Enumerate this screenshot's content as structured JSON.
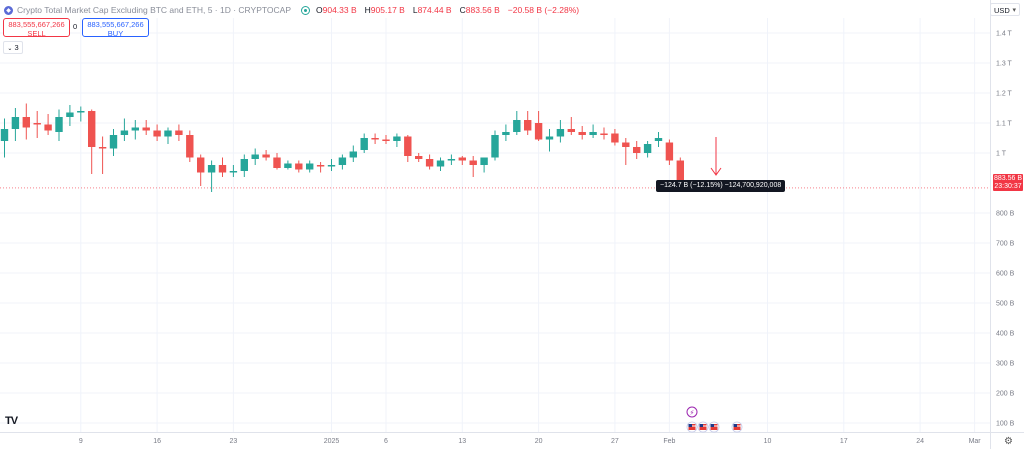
{
  "header": {
    "title": "Crypto Total Market Cap Excluding BTC and ETH, 5 · 1D · CRYPTOCAP",
    "ohlc": [
      {
        "k": "O",
        "v": "904.33 B"
      },
      {
        "k": "H",
        "v": "905.17 B"
      },
      {
        "k": "L",
        "v": "874.44 B"
      },
      {
        "k": "C",
        "v": "883.56 B"
      },
      {
        "k": "",
        "v": "−20.58 B (−2.28%)"
      }
    ]
  },
  "trade": {
    "sell_price": "883,555,667,266",
    "sell_label": "SELL",
    "spread": "0",
    "buy_price": "883,555,667,266",
    "buy_label": "BUY"
  },
  "indicators_count": "3",
  "currency": "USD",
  "price_tag": {
    "price": "883.56 B",
    "countdown": "23:30:37"
  },
  "measure_label": "−124.7 B (−12.15%) −124,700,920,008",
  "logo": "TV",
  "colors": {
    "up": "#26a69a",
    "down": "#ef5350",
    "grid": "#f0f3fa",
    "axis_text": "#787b86"
  },
  "chart_data": {
    "type": "candlestick",
    "y_unit": "B USD",
    "ylim": [
      70,
      1450
    ],
    "y_ticks": [
      {
        "v": 100,
        "label": "100 B"
      },
      {
        "v": 200,
        "label": "200 B"
      },
      {
        "v": 300,
        "label": "300 B"
      },
      {
        "v": 400,
        "label": "400 B"
      },
      {
        "v": 500,
        "label": "500 B"
      },
      {
        "v": 600,
        "label": "600 B"
      },
      {
        "v": 700,
        "label": "700 B"
      },
      {
        "v": 800,
        "label": "800 B"
      },
      {
        "v": 1000,
        "label": "1 T"
      },
      {
        "v": 1100,
        "label": "1.1 T"
      },
      {
        "v": 1200,
        "label": "1.2 T"
      },
      {
        "v": 1300,
        "label": "1.3 T"
      },
      {
        "v": 1400,
        "label": "1.4 T"
      }
    ],
    "x_ticks": [
      {
        "label": "9",
        "i": 7
      },
      {
        "label": "16",
        "i": 14
      },
      {
        "label": "23",
        "i": 21
      },
      {
        "label": "2025",
        "i": 30
      },
      {
        "label": "6",
        "i": 35
      },
      {
        "label": "13",
        "i": 42
      },
      {
        "label": "20",
        "i": 49
      },
      {
        "label": "27",
        "i": 56
      },
      {
        "label": "Feb",
        "i": 61
      },
      {
        "label": "10",
        "i": 70
      },
      {
        "label": "17",
        "i": 77
      },
      {
        "label": "24",
        "i": 84
      },
      {
        "label": "Mar",
        "i": 89
      }
    ],
    "current_price": 883.56,
    "candles": [
      {
        "o": 1040,
        "h": 1115,
        "l": 985,
        "c": 1080
      },
      {
        "o": 1080,
        "h": 1150,
        "l": 1040,
        "c": 1120
      },
      {
        "o": 1120,
        "h": 1165,
        "l": 1045,
        "c": 1085
      },
      {
        "o": 1100,
        "h": 1140,
        "l": 1050,
        "c": 1095
      },
      {
        "o": 1095,
        "h": 1130,
        "l": 1060,
        "c": 1075
      },
      {
        "o": 1070,
        "h": 1145,
        "l": 1040,
        "c": 1120
      },
      {
        "o": 1120,
        "h": 1160,
        "l": 1090,
        "c": 1135
      },
      {
        "o": 1135,
        "h": 1155,
        "l": 1105,
        "c": 1140
      },
      {
        "o": 1140,
        "h": 1145,
        "l": 930,
        "c": 1020
      },
      {
        "o": 1020,
        "h": 1055,
        "l": 930,
        "c": 1015
      },
      {
        "o": 1015,
        "h": 1080,
        "l": 990,
        "c": 1060
      },
      {
        "o": 1060,
        "h": 1115,
        "l": 1040,
        "c": 1075
      },
      {
        "o": 1075,
        "h": 1110,
        "l": 1045,
        "c": 1085
      },
      {
        "o": 1085,
        "h": 1110,
        "l": 1060,
        "c": 1075
      },
      {
        "o": 1075,
        "h": 1095,
        "l": 1040,
        "c": 1055
      },
      {
        "o": 1055,
        "h": 1085,
        "l": 1030,
        "c": 1075
      },
      {
        "o": 1075,
        "h": 1095,
        "l": 1040,
        "c": 1060
      },
      {
        "o": 1060,
        "h": 1075,
        "l": 970,
        "c": 985
      },
      {
        "o": 985,
        "h": 995,
        "l": 890,
        "c": 935
      },
      {
        "o": 935,
        "h": 975,
        "l": 870,
        "c": 960
      },
      {
        "o": 960,
        "h": 985,
        "l": 920,
        "c": 935
      },
      {
        "o": 935,
        "h": 960,
        "l": 920,
        "c": 940
      },
      {
        "o": 940,
        "h": 995,
        "l": 920,
        "c": 980
      },
      {
        "o": 980,
        "h": 1015,
        "l": 960,
        "c": 995
      },
      {
        "o": 995,
        "h": 1010,
        "l": 975,
        "c": 985
      },
      {
        "o": 985,
        "h": 1000,
        "l": 945,
        "c": 950
      },
      {
        "o": 950,
        "h": 975,
        "l": 945,
        "c": 965
      },
      {
        "o": 965,
        "h": 975,
        "l": 935,
        "c": 945
      },
      {
        "o": 945,
        "h": 975,
        "l": 935,
        "c": 965
      },
      {
        "o": 960,
        "h": 970,
        "l": 935,
        "c": 955
      },
      {
        "o": 955,
        "h": 980,
        "l": 940,
        "c": 960
      },
      {
        "o": 960,
        "h": 995,
        "l": 945,
        "c": 985
      },
      {
        "o": 985,
        "h": 1025,
        "l": 970,
        "c": 1005
      },
      {
        "o": 1010,
        "h": 1065,
        "l": 1000,
        "c": 1050
      },
      {
        "o": 1050,
        "h": 1065,
        "l": 1030,
        "c": 1045
      },
      {
        "o": 1045,
        "h": 1060,
        "l": 1030,
        "c": 1040
      },
      {
        "o": 1040,
        "h": 1065,
        "l": 1020,
        "c": 1055
      },
      {
        "o": 1055,
        "h": 1060,
        "l": 970,
        "c": 990
      },
      {
        "o": 990,
        "h": 1000,
        "l": 970,
        "c": 980
      },
      {
        "o": 980,
        "h": 995,
        "l": 945,
        "c": 955
      },
      {
        "o": 955,
        "h": 985,
        "l": 940,
        "c": 975
      },
      {
        "o": 975,
        "h": 995,
        "l": 960,
        "c": 980
      },
      {
        "o": 985,
        "h": 990,
        "l": 960,
        "c": 975
      },
      {
        "o": 975,
        "h": 990,
        "l": 920,
        "c": 960
      },
      {
        "o": 960,
        "h": 985,
        "l": 935,
        "c": 985
      },
      {
        "o": 985,
        "h": 1075,
        "l": 975,
        "c": 1060
      },
      {
        "o": 1060,
        "h": 1095,
        "l": 1040,
        "c": 1070
      },
      {
        "o": 1070,
        "h": 1140,
        "l": 1060,
        "c": 1110
      },
      {
        "o": 1110,
        "h": 1140,
        "l": 1060,
        "c": 1075
      },
      {
        "o": 1100,
        "h": 1140,
        "l": 1040,
        "c": 1045
      },
      {
        "o": 1045,
        "h": 1080,
        "l": 1005,
        "c": 1055
      },
      {
        "o": 1055,
        "h": 1110,
        "l": 1035,
        "c": 1080
      },
      {
        "o": 1080,
        "h": 1120,
        "l": 1060,
        "c": 1070
      },
      {
        "o": 1070,
        "h": 1090,
        "l": 1045,
        "c": 1060
      },
      {
        "o": 1060,
        "h": 1095,
        "l": 1050,
        "c": 1070
      },
      {
        "o": 1065,
        "h": 1085,
        "l": 1045,
        "c": 1060
      },
      {
        "o": 1065,
        "h": 1080,
        "l": 1025,
        "c": 1035
      },
      {
        "o": 1035,
        "h": 1050,
        "l": 960,
        "c": 1020
      },
      {
        "o": 1020,
        "h": 1040,
        "l": 980,
        "c": 1000
      },
      {
        "o": 1000,
        "h": 1040,
        "l": 985,
        "c": 1030
      },
      {
        "o": 1040,
        "h": 1070,
        "l": 1020,
        "c": 1050
      },
      {
        "o": 1035,
        "h": 1045,
        "l": 960,
        "c": 975
      },
      {
        "o": 975,
        "h": 985,
        "l": 900,
        "c": 905
      },
      {
        "o": 905,
        "h": 906,
        "l": 874,
        "c": 884
      }
    ]
  },
  "events": {
    "top_icon": "lightning-icon",
    "flag_icons": [
      "us-flag-icon",
      "us-flag-icon",
      "us-flag-icon",
      "us-flag-icon"
    ]
  }
}
